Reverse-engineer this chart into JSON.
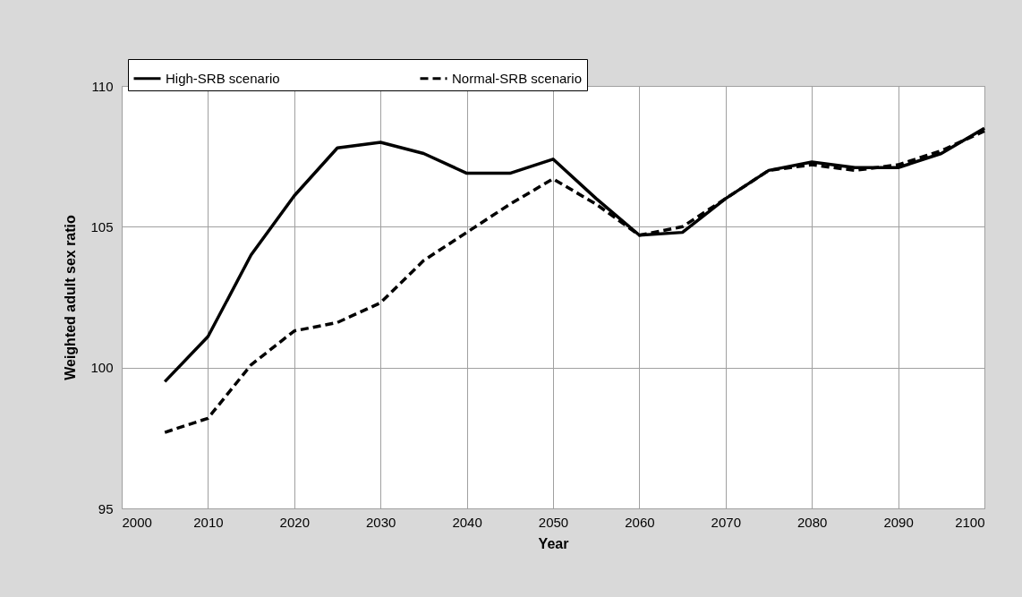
{
  "chart_data": {
    "type": "line",
    "xlabel": "Year",
    "ylabel": "Weighted adult sex ratio",
    "x": [
      2005,
      2010,
      2015,
      2020,
      2025,
      2030,
      2035,
      2040,
      2045,
      2050,
      2055,
      2060,
      2065,
      2070,
      2075,
      2080,
      2085,
      2090,
      2095,
      2100
    ],
    "series": [
      {
        "name": "High-SRB scenario",
        "color": "#000000",
        "line_style": "solid",
        "values": [
          99.5,
          101.1,
          104.0,
          106.1,
          107.8,
          108.0,
          107.6,
          106.9,
          106.9,
          107.4,
          106.0,
          104.7,
          104.8,
          106.0,
          107.0,
          107.3,
          107.1,
          107.1,
          107.6,
          108.5
        ]
      },
      {
        "name": "Normal-SRB scenario",
        "color": "#000000",
        "line_style": "dashed",
        "values": [
          97.7,
          98.2,
          100.1,
          101.3,
          101.6,
          102.3,
          103.8,
          104.8,
          105.8,
          106.7,
          105.8,
          104.7,
          105.0,
          106.0,
          107.0,
          107.2,
          107.0,
          107.2,
          107.7,
          108.4
        ]
      }
    ],
    "xlim": [
      2000,
      2100
    ],
    "xticks": [
      2000,
      2010,
      2020,
      2030,
      2040,
      2050,
      2060,
      2070,
      2080,
      2090,
      2100
    ],
    "ylim": [
      95,
      110
    ],
    "yticks": [
      95,
      100,
      105,
      110
    ],
    "grid": true,
    "legend": "top",
    "marker": "none"
  }
}
